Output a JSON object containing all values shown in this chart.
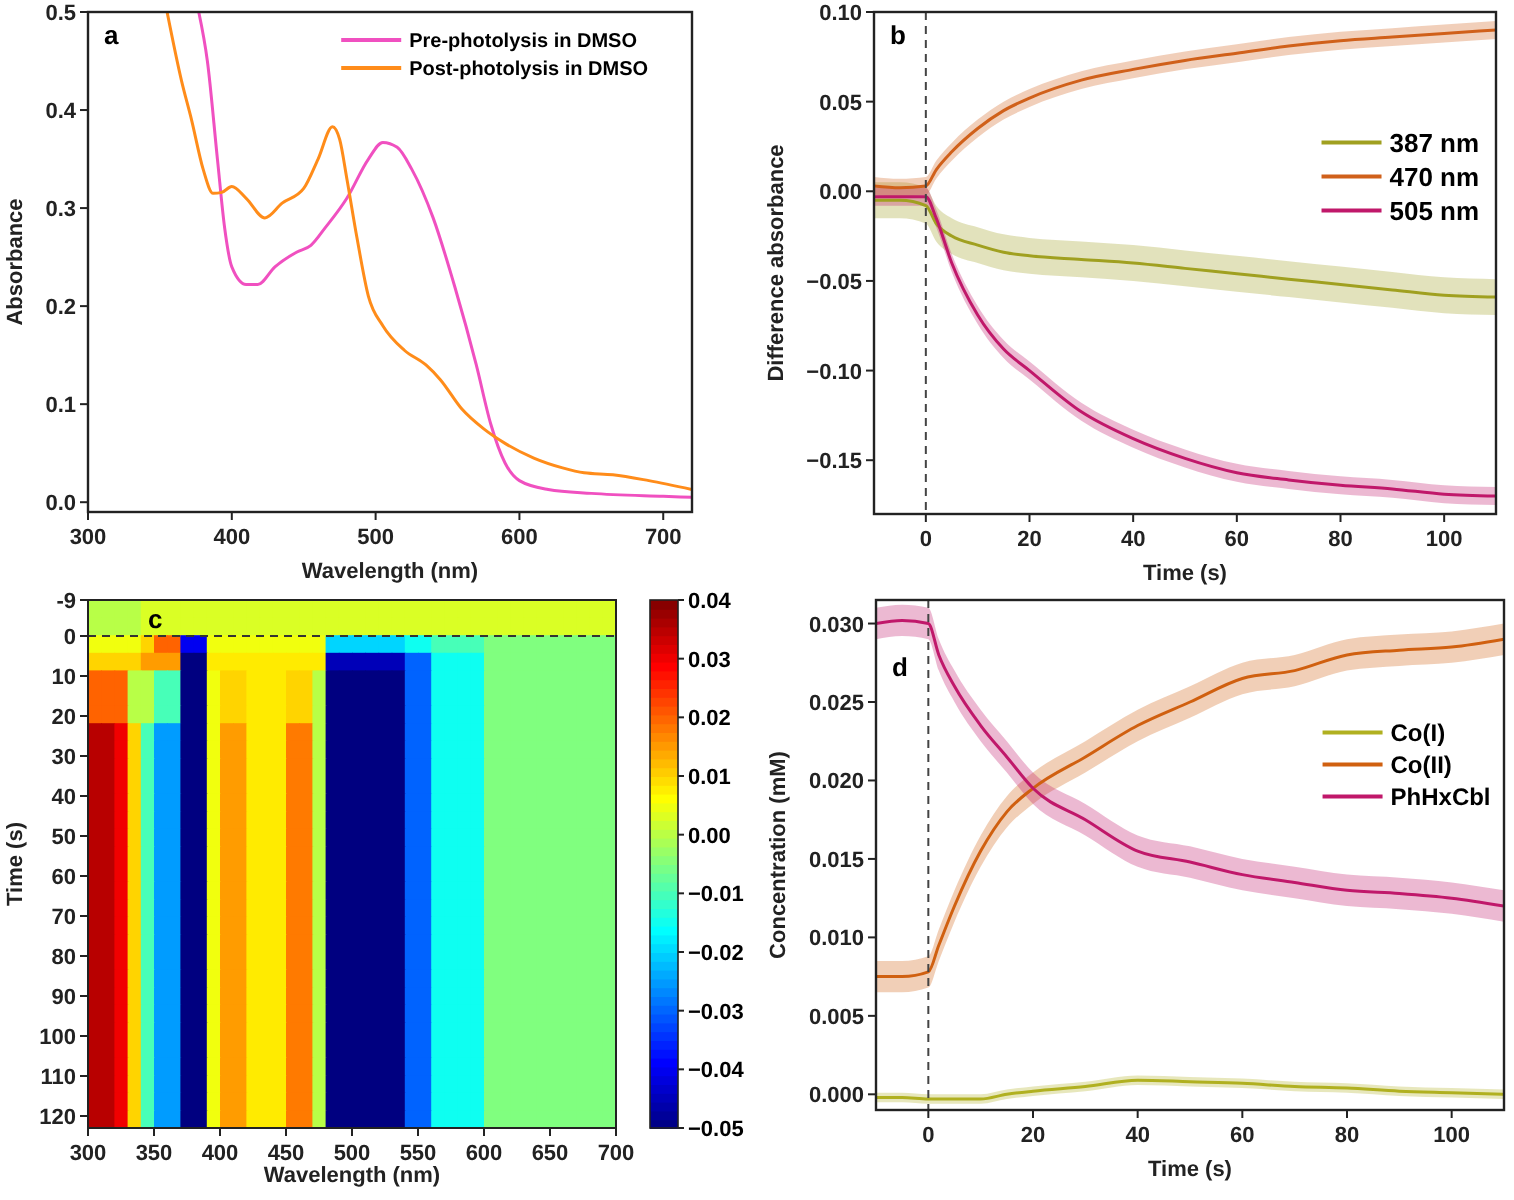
{
  "chart_data": [
    {
      "type": "line",
      "xlabel": "Wavelength (nm)",
      "ylabel": "Absorbance",
      "annotations": [
        "a"
      ],
      "legend": "top right",
      "xlim": [
        300,
        720
      ],
      "xticks": [
        300,
        400,
        500,
        600,
        700
      ],
      "ylim": [
        -0.01,
        0.5
      ],
      "yticks": [
        {
          "value": 0,
          "label": "0.0"
        },
        0.1,
        0.2,
        0.3,
        0.4,
        0.5
      ],
      "series": [
        {
          "name": "Pre-photolysis in DMSO",
          "color": "#f050c0",
          "x": [
            377,
            383,
            390,
            395,
            400,
            410,
            418,
            430,
            445,
            455,
            465,
            480,
            495,
            505,
            515,
            525,
            540,
            555,
            570,
            580,
            590,
            600,
            620,
            650,
            700,
            720
          ],
          "values": [
            0.5,
            0.45,
            0.35,
            0.28,
            0.24,
            0.222,
            0.222,
            0.24,
            0.255,
            0.262,
            0.28,
            0.31,
            0.35,
            0.367,
            0.362,
            0.34,
            0.29,
            0.22,
            0.14,
            0.08,
            0.04,
            0.022,
            0.013,
            0.009,
            0.006,
            0.005
          ]
        },
        {
          "name": "Post-photolysis in DMSO",
          "color": "#ff8c1a",
          "x": [
            355,
            365,
            372,
            380,
            387,
            393,
            400,
            410,
            423,
            435,
            450,
            460,
            470,
            475,
            480,
            487,
            495,
            505,
            520,
            535,
            545,
            560,
            575,
            590,
            610,
            630,
            645,
            665,
            690,
            720
          ],
          "values": [
            0.5,
            0.43,
            0.39,
            0.34,
            0.315,
            0.316,
            0.322,
            0.31,
            0.29,
            0.305,
            0.32,
            0.35,
            0.383,
            0.37,
            0.33,
            0.27,
            0.21,
            0.18,
            0.155,
            0.14,
            0.125,
            0.095,
            0.075,
            0.06,
            0.045,
            0.035,
            0.03,
            0.028,
            0.022,
            0.013
          ]
        }
      ]
    },
    {
      "type": "line",
      "xlabel": "Time (s)",
      "ylabel": "Difference absorbance",
      "annotations": [
        "b"
      ],
      "legend": "right",
      "xlim": [
        -10,
        110
      ],
      "xticks": [
        0,
        20,
        40,
        60,
        80,
        100
      ],
      "ylim": [
        -0.18,
        0.1
      ],
      "yticks": [
        {
          "value": 0.1,
          "label": "0.10"
        },
        0.05,
        {
          "value": 0,
          "label": "0.00"
        },
        {
          "value": -0.05,
          "label": "−0.05"
        },
        {
          "value": -0.1,
          "label": "−0.10"
        },
        {
          "value": -0.15,
          "label": "−0.15"
        }
      ],
      "ref_lines": [
        {
          "axis": "x",
          "value": 0,
          "color": "#444444",
          "line_style": "dashed"
        }
      ],
      "x": [
        -10,
        -5,
        0,
        2,
        5,
        10,
        15,
        20,
        30,
        40,
        50,
        60,
        70,
        80,
        90,
        100,
        110
      ],
      "series": [
        {
          "name": "387 nm",
          "color": "#a0a020",
          "values": [
            -0.005,
            -0.005,
            -0.008,
            -0.018,
            -0.025,
            -0.03,
            -0.034,
            -0.036,
            -0.038,
            -0.04,
            -0.043,
            -0.046,
            -0.049,
            -0.052,
            -0.055,
            -0.058,
            -0.059
          ],
          "lower": [
            -0.015,
            -0.015,
            -0.018,
            -0.028,
            -0.035,
            -0.04,
            -0.044,
            -0.046,
            -0.048,
            -0.05,
            -0.053,
            -0.056,
            -0.059,
            -0.062,
            -0.065,
            -0.068,
            -0.069
          ],
          "upper": [
            0.005,
            0.005,
            0.002,
            -0.008,
            -0.015,
            -0.02,
            -0.024,
            -0.026,
            -0.028,
            -0.03,
            -0.033,
            -0.036,
            -0.039,
            -0.042,
            -0.045,
            -0.048,
            -0.049
          ]
        },
        {
          "name": "470 nm",
          "color": "#d0601a",
          "values": [
            0.003,
            0.002,
            0.003,
            0.012,
            0.022,
            0.035,
            0.045,
            0.052,
            0.062,
            0.068,
            0.073,
            0.077,
            0.081,
            0.084,
            0.086,
            0.088,
            0.09
          ],
          "lower": [
            -0.002,
            -0.003,
            -0.002,
            0.007,
            0.017,
            0.03,
            0.04,
            0.047,
            0.057,
            0.063,
            0.068,
            0.072,
            0.076,
            0.079,
            0.081,
            0.083,
            0.085
          ],
          "upper": [
            0.008,
            0.007,
            0.008,
            0.017,
            0.027,
            0.04,
            0.05,
            0.057,
            0.067,
            0.073,
            0.078,
            0.082,
            0.086,
            0.089,
            0.091,
            0.093,
            0.095
          ]
        },
        {
          "name": "505 nm",
          "color": "#c0186a",
          "values": [
            -0.003,
            -0.003,
            -0.003,
            -0.015,
            -0.04,
            -0.069,
            -0.088,
            -0.1,
            -0.123,
            -0.138,
            -0.149,
            -0.157,
            -0.161,
            -0.164,
            -0.166,
            -0.169,
            -0.17
          ],
          "lower": [
            -0.008,
            -0.008,
            -0.008,
            -0.02,
            -0.045,
            -0.074,
            -0.093,
            -0.105,
            -0.128,
            -0.143,
            -0.154,
            -0.162,
            -0.166,
            -0.169,
            -0.171,
            -0.174,
            -0.175
          ],
          "upper": [
            0.002,
            0.002,
            0.002,
            -0.01,
            -0.035,
            -0.064,
            -0.083,
            -0.095,
            -0.118,
            -0.133,
            -0.144,
            -0.152,
            -0.156,
            -0.159,
            -0.161,
            -0.164,
            -0.165
          ]
        }
      ]
    },
    {
      "type": "heatmap",
      "xlabel": "Wavelength (nm)",
      "ylabel": "Time (s)",
      "annotations": [
        "c"
      ],
      "xlim": [
        300,
        700
      ],
      "xticks": [
        300,
        350,
        400,
        450,
        500,
        550,
        600,
        650,
        700
      ],
      "ylim": [
        123,
        -9
      ],
      "yticks": [
        -9,
        0,
        10,
        20,
        30,
        40,
        50,
        60,
        70,
        80,
        90,
        100,
        110,
        120
      ],
      "clim": [
        -0.05,
        0.04
      ],
      "cticks": [
        0.04,
        0.03,
        0.02,
        0.01,
        {
          "value": 0,
          "label": "0.00"
        },
        {
          "value": -0.01,
          "label": "−0.01"
        },
        {
          "value": -0.02,
          "label": "−0.02"
        },
        {
          "value": -0.03,
          "label": "−0.03"
        },
        {
          "value": -0.04,
          "label": "−0.04"
        },
        {
          "value": -0.05,
          "label": "−0.05"
        }
      ],
      "ref_lines": [
        {
          "axis": "y",
          "value": 0,
          "color": "#333333",
          "line_style": "dashed"
        }
      ],
      "cells": [
        [
          0,
          0,
          0,
          0,
          0.003,
          0.003,
          0.003,
          0.003,
          0.003,
          0.003,
          0.003,
          0.003,
          0.003,
          0.003,
          0.003,
          0.003,
          0.003,
          0.003,
          0.003,
          0.003,
          0.003,
          0.003,
          0.003,
          0.003,
          0.003,
          0.003,
          0.003,
          0.003,
          0.003,
          0.003,
          0.003,
          0.003,
          0.003,
          0.003,
          0.003,
          0.003,
          0.003,
          0.003,
          0.003,
          0.003
        ],
        [
          0,
          0,
          0,
          0,
          0.003,
          0.003,
          0.003,
          0.003,
          0.003,
          0.003,
          0.003,
          0.003,
          0.003,
          0.003,
          0.003,
          0.003,
          0.003,
          0.003,
          0.003,
          0.003,
          0.003,
          0.003,
          0.003,
          0.003,
          0.003,
          0.003,
          0.003,
          0.003,
          0.003,
          0.003,
          0.003,
          0.003,
          0.003,
          0.003,
          0.003,
          0.003,
          0.003,
          0.003,
          0.003,
          0.003
        ],
        [
          0.005,
          0.005,
          0.005,
          0.005,
          0.01,
          0.02,
          0.02,
          -0.04,
          -0.04,
          0.005,
          0.005,
          0.005,
          0.005,
          0.005,
          0.005,
          0.005,
          0.005,
          0.005,
          -0.02,
          -0.02,
          -0.02,
          -0.02,
          -0.02,
          -0.02,
          -0.015,
          -0.015,
          -0.01,
          -0.01,
          -0.01,
          -0.01,
          -0.005,
          -0.005,
          -0.005,
          -0.005,
          -0.005,
          -0.005,
          -0.005,
          -0.005,
          -0.005,
          -0.005
        ],
        [
          0.01,
          0.01,
          0.01,
          0.01,
          0.015,
          0.015,
          0.015,
          -0.05,
          -0.05,
          0.008,
          0.008,
          0.008,
          0.008,
          0.008,
          0.008,
          0.008,
          0.008,
          0.008,
          -0.045,
          -0.045,
          -0.045,
          -0.045,
          -0.045,
          -0.045,
          -0.03,
          -0.03,
          -0.015,
          -0.015,
          -0.015,
          -0.015,
          -0.005,
          -0.005,
          -0.005,
          -0.005,
          -0.005,
          -0.005,
          -0.005,
          -0.005,
          -0.005,
          -0.005
        ],
        [
          0.02,
          0.02,
          0.02,
          0,
          0,
          -0.01,
          -0.01,
          -0.05,
          -0.05,
          0.005,
          0.01,
          0.01,
          0.008,
          0.008,
          0.008,
          0.01,
          0.01,
          0,
          -0.05,
          -0.05,
          -0.05,
          -0.05,
          -0.05,
          -0.05,
          -0.03,
          -0.03,
          -0.015,
          -0.015,
          -0.015,
          -0.015,
          -0.005,
          -0.005,
          -0.005,
          -0.005,
          -0.005,
          -0.005,
          -0.005,
          -0.005,
          -0.005,
          -0.005
        ],
        [
          0.02,
          0.02,
          0.02,
          0,
          0,
          -0.01,
          -0.01,
          -0.05,
          -0.05,
          0.005,
          0.01,
          0.01,
          0.008,
          0.008,
          0.008,
          0.01,
          0.01,
          0,
          -0.05,
          -0.05,
          -0.05,
          -0.05,
          -0.05,
          -0.05,
          -0.03,
          -0.03,
          -0.015,
          -0.015,
          -0.015,
          -0.015,
          -0.005,
          -0.005,
          -0.005,
          -0.005,
          -0.005,
          -0.005,
          -0.005,
          -0.005,
          -0.005,
          -0.005
        ],
        [
          0.02,
          0.02,
          0.02,
          0,
          0,
          -0.01,
          -0.01,
          -0.05,
          -0.05,
          0.005,
          0.01,
          0.01,
          0.008,
          0.008,
          0.008,
          0.01,
          0.01,
          0,
          -0.05,
          -0.05,
          -0.05,
          -0.05,
          -0.05,
          -0.05,
          -0.03,
          -0.03,
          -0.015,
          -0.015,
          -0.015,
          -0.015,
          -0.005,
          -0.005,
          -0.005,
          -0.005,
          -0.005,
          -0.005,
          -0.005,
          -0.005,
          -0.005,
          -0.005
        ],
        [
          0.035,
          0.035,
          0.03,
          0.01,
          -0.01,
          -0.025,
          -0.025,
          -0.05,
          -0.05,
          0.005,
          0.015,
          0.015,
          0.008,
          0.008,
          0.008,
          0.018,
          0.018,
          0,
          -0.05,
          -0.05,
          -0.05,
          -0.05,
          -0.05,
          -0.05,
          -0.03,
          -0.03,
          -0.015,
          -0.015,
          -0.015,
          -0.015,
          -0.005,
          -0.005,
          -0.005,
          -0.005,
          -0.005,
          -0.005,
          -0.005,
          -0.005,
          -0.005,
          -0.005
        ],
        [
          0.035,
          0.035,
          0.03,
          0.01,
          -0.01,
          -0.025,
          -0.025,
          -0.05,
          -0.05,
          0.005,
          0.015,
          0.015,
          0.008,
          0.008,
          0.008,
          0.018,
          0.018,
          0,
          -0.05,
          -0.05,
          -0.05,
          -0.05,
          -0.05,
          -0.05,
          -0.03,
          -0.03,
          -0.015,
          -0.015,
          -0.015,
          -0.015,
          -0.005,
          -0.005,
          -0.005,
          -0.005,
          -0.005,
          -0.005,
          -0.005,
          -0.005,
          -0.005,
          -0.005
        ],
        [
          0.035,
          0.035,
          0.03,
          0.01,
          -0.01,
          -0.025,
          -0.025,
          -0.05,
          -0.05,
          0.005,
          0.015,
          0.015,
          0.008,
          0.008,
          0.008,
          0.018,
          0.018,
          0,
          -0.05,
          -0.05,
          -0.05,
          -0.05,
          -0.05,
          -0.05,
          -0.03,
          -0.03,
          -0.015,
          -0.015,
          -0.015,
          -0.015,
          -0.005,
          -0.005,
          -0.005,
          -0.005,
          -0.005,
          -0.005,
          -0.005,
          -0.005,
          -0.005,
          -0.005
        ],
        [
          0.035,
          0.035,
          0.03,
          0.01,
          -0.01,
          -0.025,
          -0.025,
          -0.05,
          -0.05,
          0.005,
          0.015,
          0.015,
          0.008,
          0.008,
          0.008,
          0.018,
          0.018,
          0,
          -0.05,
          -0.05,
          -0.05,
          -0.05,
          -0.05,
          -0.05,
          -0.03,
          -0.03,
          -0.015,
          -0.015,
          -0.015,
          -0.015,
          -0.005,
          -0.005,
          -0.005,
          -0.005,
          -0.005,
          -0.005,
          -0.005,
          -0.005,
          -0.005,
          -0.005
        ],
        [
          0.035,
          0.035,
          0.03,
          0.01,
          -0.01,
          -0.025,
          -0.025,
          -0.05,
          -0.05,
          0.005,
          0.015,
          0.015,
          0.008,
          0.008,
          0.008,
          0.018,
          0.018,
          0,
          -0.05,
          -0.05,
          -0.05,
          -0.05,
          -0.05,
          -0.05,
          -0.03,
          -0.03,
          -0.015,
          -0.015,
          -0.015,
          -0.015,
          -0.005,
          -0.005,
          -0.005,
          -0.005,
          -0.005,
          -0.005,
          -0.005,
          -0.005,
          -0.005,
          -0.005
        ],
        [
          0.035,
          0.035,
          0.03,
          0.01,
          -0.01,
          -0.025,
          -0.025,
          -0.05,
          -0.05,
          0.005,
          0.015,
          0.015,
          0.008,
          0.008,
          0.008,
          0.018,
          0.018,
          0,
          -0.05,
          -0.05,
          -0.05,
          -0.05,
          -0.05,
          -0.05,
          -0.03,
          -0.03,
          -0.015,
          -0.015,
          -0.015,
          -0.015,
          -0.005,
          -0.005,
          -0.005,
          -0.005,
          -0.005,
          -0.005,
          -0.005,
          -0.005,
          -0.005,
          -0.005
        ],
        [
          0.035,
          0.035,
          0.03,
          0.01,
          -0.01,
          -0.025,
          -0.025,
          -0.05,
          -0.05,
          0.005,
          0.015,
          0.015,
          0.008,
          0.008,
          0.008,
          0.018,
          0.018,
          0,
          -0.05,
          -0.05,
          -0.05,
          -0.05,
          -0.05,
          -0.05,
          -0.03,
          -0.03,
          -0.015,
          -0.015,
          -0.015,
          -0.015,
          -0.005,
          -0.005,
          -0.005,
          -0.005,
          -0.005,
          -0.005,
          -0.005,
          -0.005,
          -0.005,
          -0.005
        ],
        [
          0.035,
          0.035,
          0.03,
          0.01,
          -0.01,
          -0.025,
          -0.025,
          -0.05,
          -0.05,
          0.005,
          0.015,
          0.015,
          0.008,
          0.008,
          0.008,
          0.018,
          0.018,
          0,
          -0.05,
          -0.05,
          -0.05,
          -0.05,
          -0.05,
          -0.05,
          -0.03,
          -0.03,
          -0.015,
          -0.015,
          -0.015,
          -0.015,
          -0.005,
          -0.005,
          -0.005,
          -0.005,
          -0.005,
          -0.005,
          -0.005,
          -0.005,
          -0.005,
          -0.005
        ],
        [
          0.035,
          0.035,
          0.03,
          0.01,
          -0.01,
          -0.025,
          -0.025,
          -0.05,
          -0.05,
          0.005,
          0.015,
          0.015,
          0.008,
          0.008,
          0.008,
          0.018,
          0.018,
          0,
          -0.05,
          -0.05,
          -0.05,
          -0.05,
          -0.05,
          -0.05,
          -0.03,
          -0.03,
          -0.015,
          -0.015,
          -0.015,
          -0.015,
          -0.005,
          -0.005,
          -0.005,
          -0.005,
          -0.005,
          -0.005,
          -0.005,
          -0.005,
          -0.005,
          -0.005
        ],
        [
          0.035,
          0.035,
          0.03,
          0.01,
          -0.01,
          -0.025,
          -0.025,
          -0.05,
          -0.05,
          0.005,
          0.015,
          0.015,
          0.008,
          0.008,
          0.008,
          0.018,
          0.018,
          0,
          -0.05,
          -0.05,
          -0.05,
          -0.05,
          -0.05,
          -0.05,
          -0.03,
          -0.03,
          -0.015,
          -0.015,
          -0.015,
          -0.015,
          -0.005,
          -0.005,
          -0.005,
          -0.005,
          -0.005,
          -0.005,
          -0.005,
          -0.005,
          -0.005,
          -0.005
        ],
        [
          0.035,
          0.035,
          0.03,
          0.01,
          -0.01,
          -0.025,
          -0.025,
          -0.05,
          -0.05,
          0.005,
          0.015,
          0.015,
          0.008,
          0.008,
          0.008,
          0.018,
          0.018,
          0,
          -0.05,
          -0.05,
          -0.05,
          -0.05,
          -0.05,
          -0.05,
          -0.03,
          -0.03,
          -0.015,
          -0.015,
          -0.015,
          -0.015,
          -0.005,
          -0.005,
          -0.005,
          -0.005,
          -0.005,
          -0.005,
          -0.005,
          -0.005,
          -0.005,
          -0.005
        ],
        [
          0.035,
          0.035,
          0.03,
          0.01,
          -0.01,
          -0.025,
          -0.025,
          -0.05,
          -0.05,
          0.005,
          0.015,
          0.015,
          0.008,
          0.008,
          0.008,
          0.018,
          0.018,
          0,
          -0.05,
          -0.05,
          -0.05,
          -0.05,
          -0.05,
          -0.05,
          -0.03,
          -0.03,
          -0.015,
          -0.015,
          -0.015,
          -0.015,
          -0.005,
          -0.005,
          -0.005,
          -0.005,
          -0.005,
          -0.005,
          -0.005,
          -0.005,
          -0.005,
          -0.005
        ],
        [
          0.035,
          0.035,
          0.03,
          0.01,
          -0.01,
          -0.025,
          -0.025,
          -0.05,
          -0.05,
          0.005,
          0.015,
          0.015,
          0.008,
          0.008,
          0.008,
          0.018,
          0.018,
          0,
          -0.05,
          -0.05,
          -0.05,
          -0.05,
          -0.05,
          -0.05,
          -0.03,
          -0.03,
          -0.015,
          -0.015,
          -0.015,
          -0.015,
          -0.005,
          -0.005,
          -0.005,
          -0.005,
          -0.005,
          -0.005,
          -0.005,
          -0.005,
          -0.005,
          -0.005
        ],
        [
          0.035,
          0.035,
          0.03,
          0.01,
          -0.01,
          -0.025,
          -0.025,
          -0.05,
          -0.05,
          0.005,
          0.015,
          0.015,
          0.008,
          0.008,
          0.008,
          0.018,
          0.018,
          0,
          -0.05,
          -0.05,
          -0.05,
          -0.05,
          -0.05,
          -0.05,
          -0.03,
          -0.03,
          -0.015,
          -0.015,
          -0.015,
          -0.015,
          -0.005,
          -0.005,
          -0.005,
          -0.005,
          -0.005,
          -0.005,
          -0.005,
          -0.005,
          -0.005,
          -0.005
        ],
        [
          0.035,
          0.035,
          0.03,
          0.01,
          -0.01,
          -0.025,
          -0.025,
          -0.05,
          -0.05,
          0.005,
          0.015,
          0.015,
          0.008,
          0.008,
          0.008,
          0.018,
          0.018,
          0,
          -0.05,
          -0.05,
          -0.05,
          -0.05,
          -0.05,
          -0.05,
          -0.03,
          -0.03,
          -0.015,
          -0.015,
          -0.015,
          -0.015,
          -0.005,
          -0.005,
          -0.005,
          -0.005,
          -0.005,
          -0.005,
          -0.005,
          -0.005,
          -0.005,
          -0.005
        ],
        [
          0.035,
          0.035,
          0.03,
          0.01,
          -0.01,
          -0.025,
          -0.025,
          -0.05,
          -0.05,
          0.005,
          0.015,
          0.015,
          0.008,
          0.008,
          0.008,
          0.018,
          0.018,
          0,
          -0.05,
          -0.05,
          -0.05,
          -0.05,
          -0.05,
          -0.05,
          -0.03,
          -0.03,
          -0.015,
          -0.015,
          -0.015,
          -0.015,
          -0.005,
          -0.005,
          -0.005,
          -0.005,
          -0.005,
          -0.005,
          -0.005,
          -0.005,
          -0.005,
          -0.005
        ],
        [
          0.035,
          0.035,
          0.03,
          0.01,
          -0.01,
          -0.025,
          -0.025,
          -0.05,
          -0.05,
          0.005,
          0.015,
          0.015,
          0.008,
          0.008,
          0.008,
          0.018,
          0.018,
          0,
          -0.05,
          -0.05,
          -0.05,
          -0.05,
          -0.05,
          -0.05,
          -0.03,
          -0.03,
          -0.015,
          -0.015,
          -0.015,
          -0.015,
          -0.005,
          -0.005,
          -0.005,
          -0.005,
          -0.005,
          -0.005,
          -0.005,
          -0.005,
          -0.005,
          -0.005
        ],
        [
          0.035,
          0.035,
          0.03,
          0.01,
          -0.01,
          -0.025,
          -0.025,
          -0.05,
          -0.05,
          0.005,
          0.015,
          0.015,
          0.008,
          0.008,
          0.008,
          0.018,
          0.018,
          0,
          -0.05,
          -0.05,
          -0.05,
          -0.05,
          -0.05,
          -0.05,
          -0.03,
          -0.03,
          -0.015,
          -0.015,
          -0.015,
          -0.015,
          -0.005,
          -0.005,
          -0.005,
          -0.005,
          -0.005,
          -0.005,
          -0.005,
          -0.005,
          -0.005,
          -0.005
        ],
        [
          0.035,
          0.035,
          0.03,
          0.01,
          -0.01,
          -0.025,
          -0.025,
          -0.05,
          -0.05,
          0.005,
          0.015,
          0.015,
          0.008,
          0.008,
          0.008,
          0.018,
          0.018,
          0,
          -0.05,
          -0.05,
          -0.05,
          -0.05,
          -0.05,
          -0.05,
          -0.03,
          -0.03,
          -0.015,
          -0.015,
          -0.015,
          -0.015,
          -0.005,
          -0.005,
          -0.005,
          -0.005,
          -0.005,
          -0.005,
          -0.005,
          -0.005,
          -0.005,
          -0.005
        ],
        [
          0.035,
          0.035,
          0.03,
          0.01,
          -0.01,
          -0.025,
          -0.025,
          -0.05,
          -0.05,
          0.005,
          0.015,
          0.015,
          0.008,
          0.008,
          0.008,
          0.018,
          0.018,
          0,
          -0.05,
          -0.05,
          -0.05,
          -0.05,
          -0.05,
          -0.05,
          -0.03,
          -0.03,
          -0.015,
          -0.015,
          -0.015,
          -0.015,
          -0.005,
          -0.005,
          -0.005,
          -0.005,
          -0.005,
          -0.005,
          -0.005,
          -0.005,
          -0.005,
          -0.005
        ],
        [
          0.035,
          0.035,
          0.03,
          0.01,
          -0.01,
          -0.025,
          -0.025,
          -0.05,
          -0.05,
          0.005,
          0.015,
          0.015,
          0.008,
          0.008,
          0.008,
          0.018,
          0.018,
          0,
          -0.05,
          -0.05,
          -0.05,
          -0.05,
          -0.05,
          -0.05,
          -0.03,
          -0.03,
          -0.015,
          -0.015,
          -0.015,
          -0.015,
          -0.005,
          -0.005,
          -0.005,
          -0.005,
          -0.005,
          -0.005,
          -0.005,
          -0.005,
          -0.005,
          -0.005
        ],
        [
          0.035,
          0.035,
          0.03,
          0.01,
          -0.01,
          -0.025,
          -0.025,
          -0.05,
          -0.05,
          0.005,
          0.015,
          0.015,
          0.008,
          0.008,
          0.008,
          0.018,
          0.018,
          0,
          -0.05,
          -0.05,
          -0.05,
          -0.05,
          -0.05,
          -0.05,
          -0.03,
          -0.03,
          -0.015,
          -0.015,
          -0.015,
          -0.015,
          -0.005,
          -0.005,
          -0.005,
          -0.005,
          -0.005,
          -0.005,
          -0.005,
          -0.005,
          -0.005,
          -0.005
        ],
        [
          0.035,
          0.035,
          0.03,
          0.01,
          -0.01,
          -0.025,
          -0.025,
          -0.05,
          -0.05,
          0.005,
          0.015,
          0.015,
          0.008,
          0.008,
          0.008,
          0.018,
          0.018,
          0,
          -0.05,
          -0.05,
          -0.05,
          -0.05,
          -0.05,
          -0.05,
          -0.03,
          -0.03,
          -0.015,
          -0.015,
          -0.015,
          -0.015,
          -0.005,
          -0.005,
          -0.005,
          -0.005,
          -0.005,
          -0.005,
          -0.005,
          -0.005,
          -0.005,
          -0.005
        ]
      ]
    },
    {
      "type": "line",
      "xlabel": "Time (s)",
      "ylabel": "Concentration (mM)",
      "annotations": [
        "d"
      ],
      "legend": "right",
      "xlim": [
        -10,
        110
      ],
      "xticks": [
        0,
        20,
        40,
        60,
        80,
        100
      ],
      "ylim": [
        -0.001,
        0.0315
      ],
      "yticks": [
        {
          "value": 0,
          "label": "0.000"
        },
        0.005,
        {
          "value": 0.01,
          "label": "0.010"
        },
        0.015,
        {
          "value": 0.02,
          "label": "0.020"
        },
        0.025,
        {
          "value": 0.03,
          "label": "0.030"
        }
      ],
      "ref_lines": [
        {
          "axis": "x",
          "value": 0,
          "color": "#444444",
          "line_style": "dashed"
        }
      ],
      "x": [
        -10,
        -5,
        0,
        2,
        5,
        10,
        15,
        20,
        30,
        40,
        50,
        60,
        70,
        80,
        90,
        100,
        110
      ],
      "series": [
        {
          "name": "Co(I)",
          "color": "#b0b020",
          "values": [
            -0.0002,
            -0.0002,
            -0.0003,
            -0.0003,
            -0.0003,
            -0.0003,
            0,
            0.0002,
            0.0005,
            0.0009,
            0.0008,
            0.0007,
            0.0005,
            0.0004,
            0.0002,
            0.0001,
            0
          ],
          "lower": [
            -0.0005,
            -0.0005,
            -0.0006,
            -0.0006,
            -0.0006,
            -0.0006,
            -0.0003,
            -0.0001,
            0.0002,
            0.0006,
            0.0005,
            0.0004,
            0.0002,
            0.0001,
            -0.0001,
            -0.0002,
            -0.0003
          ],
          "upper": [
            0.0001,
            0.0001,
            0,
            0,
            0,
            0,
            0.0003,
            0.0005,
            0.0008,
            0.0012,
            0.0011,
            0.001,
            0.0008,
            0.0007,
            0.0005,
            0.0004,
            0.0003
          ]
        },
        {
          "name": "Co(II)",
          "color": "#d06010",
          "values": [
            0.0075,
            0.0075,
            0.0078,
            0.0095,
            0.012,
            0.0155,
            0.018,
            0.0195,
            0.0215,
            0.0235,
            0.025,
            0.0265,
            0.027,
            0.028,
            0.0283,
            0.0285,
            0.029
          ],
          "lower": [
            0.0065,
            0.0065,
            0.0068,
            0.0085,
            0.011,
            0.0145,
            0.017,
            0.0185,
            0.0205,
            0.0225,
            0.024,
            0.0255,
            0.026,
            0.027,
            0.0273,
            0.0275,
            0.028
          ],
          "upper": [
            0.0085,
            0.0085,
            0.0088,
            0.0105,
            0.013,
            0.0165,
            0.019,
            0.0205,
            0.0225,
            0.0245,
            0.026,
            0.0275,
            0.028,
            0.029,
            0.0293,
            0.0295,
            0.03
          ]
        },
        {
          "name": "PhHxCbl",
          "color": "#c0186a",
          "values": [
            0.03,
            0.0302,
            0.03,
            0.028,
            0.026,
            0.0235,
            0.0215,
            0.0195,
            0.0175,
            0.0155,
            0.0148,
            0.014,
            0.0135,
            0.013,
            0.0128,
            0.0125,
            0.012
          ],
          "lower": [
            0.029,
            0.0292,
            0.029,
            0.027,
            0.025,
            0.0225,
            0.0205,
            0.0185,
            0.0165,
            0.0145,
            0.0138,
            0.013,
            0.0125,
            0.012,
            0.0118,
            0.0115,
            0.011
          ],
          "upper": [
            0.031,
            0.0312,
            0.031,
            0.029,
            0.027,
            0.0245,
            0.0225,
            0.0205,
            0.0185,
            0.0165,
            0.0158,
            0.015,
            0.0145,
            0.014,
            0.0138,
            0.0135,
            0.013
          ]
        }
      ]
    }
  ]
}
